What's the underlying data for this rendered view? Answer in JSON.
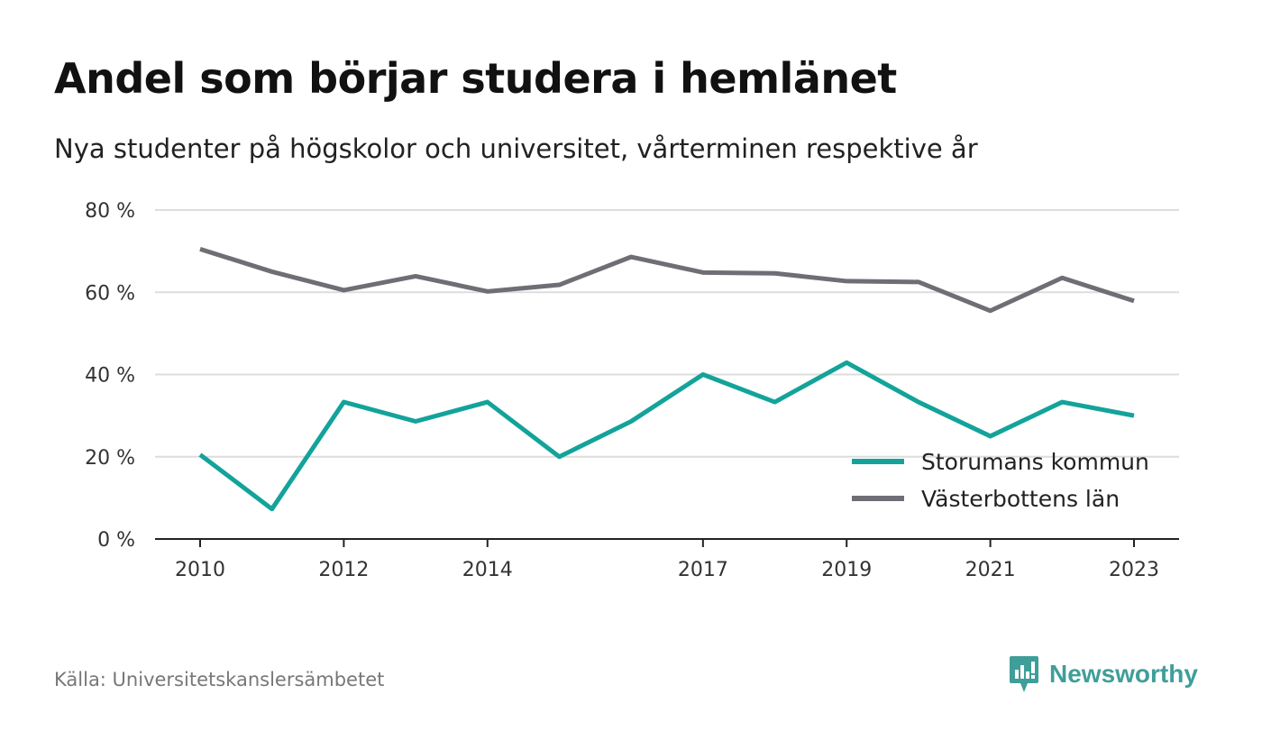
{
  "title": "Andel som börjar studera i hemlänet",
  "subtitle": "Nya studenter på högskolor och universitet, vårterminen respektive år",
  "source": "Källa: Universitetskanslersämbetet",
  "brand": {
    "name": "Newsworthy",
    "icon": "newsworthy-logo-icon",
    "color": "#3f9e99"
  },
  "chart_data": {
    "type": "line",
    "x": [
      2010,
      2011,
      2012,
      2013,
      2014,
      2015,
      2016,
      2017,
      2018,
      2019,
      2020,
      2021,
      2022,
      2023
    ],
    "x_tick_labels": [
      "2010",
      "2012",
      "2014",
      "2017",
      "2019",
      "2021",
      "2023"
    ],
    "ylim": [
      0,
      80
    ],
    "y_ticks": [
      0,
      20,
      40,
      60,
      80
    ],
    "y_tick_labels": [
      "0 %",
      "20 %",
      "40 %",
      "60 %",
      "80 %"
    ],
    "grid": true,
    "legend_position": "bottom-right",
    "series": [
      {
        "name": "Storumans kommun",
        "color": "#13a39a",
        "values": [
          20.5,
          7.3,
          33.3,
          28.6,
          33.3,
          20.0,
          28.6,
          40.0,
          33.3,
          42.9,
          33.3,
          25.0,
          33.3,
          30.0
        ]
      },
      {
        "name": "Västerbottens län",
        "color": "#6e6e75",
        "values": [
          70.5,
          65.0,
          60.5,
          63.9,
          60.2,
          61.8,
          68.6,
          64.8,
          64.6,
          62.7,
          62.5,
          55.5,
          63.5,
          57.9
        ]
      }
    ]
  }
}
